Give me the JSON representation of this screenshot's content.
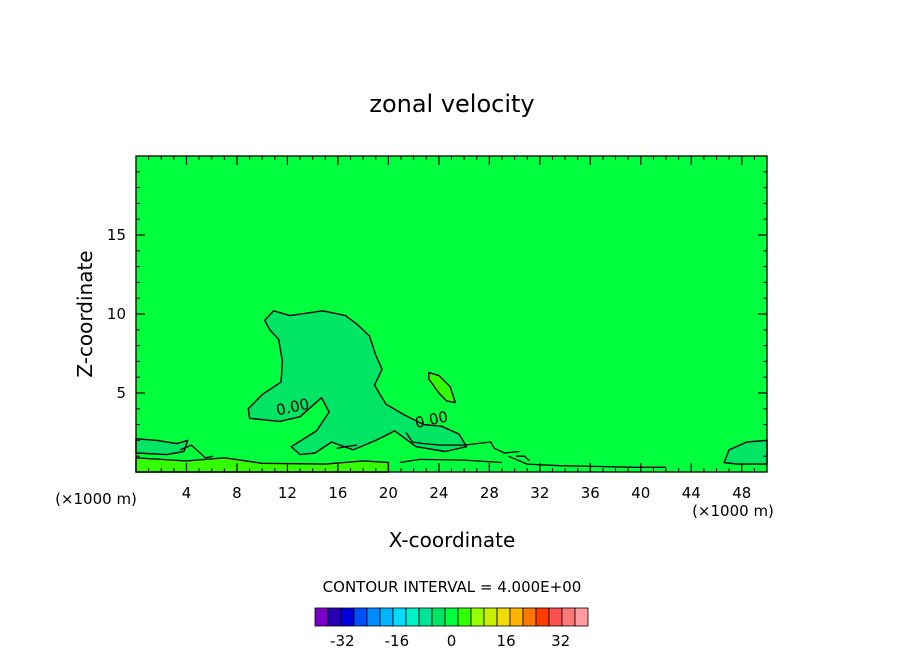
{
  "chart_data": {
    "type": "contour",
    "title": "zonal velocity",
    "xlabel": "X-coordinate",
    "ylabel": "Z-coordinate",
    "x_unit": "(×1000 m)",
    "x_unit_right": "(×1000 m)",
    "xlim": [
      0,
      50
    ],
    "ylim": [
      0,
      20
    ],
    "x_ticks": [
      4,
      8,
      12,
      16,
      20,
      24,
      28,
      32,
      36,
      40,
      44,
      48
    ],
    "y_ticks": [
      5,
      10,
      15
    ],
    "contour_interval_label": "CONTOUR INTERVAL = 4.000E+00",
    "contour_labels": [
      {
        "text": "0.00",
        "x": 12.5,
        "y": 3.8
      },
      {
        "text": "0.00",
        "x": 23.5,
        "y": 3.0
      }
    ],
    "colorbar": {
      "ticks": [
        "-32",
        "-16",
        "0",
        "16",
        "32"
      ],
      "tick_values": [
        -32,
        -16,
        0,
        16,
        32
      ],
      "bin_edges": [
        -40,
        -36,
        -32,
        -28,
        -24,
        -20,
        -16,
        -12,
        -8,
        -4,
        0,
        4,
        8,
        12,
        16,
        20,
        24,
        28,
        32,
        36,
        40
      ],
      "colors": [
        "#7a00c8",
        "#2a00b4",
        "#0000dc",
        "#0050ff",
        "#008cff",
        "#00b4ff",
        "#00dcff",
        "#00f0c8",
        "#00e696",
        "#00e664",
        "#00ff3c",
        "#32ff00",
        "#96ff00",
        "#c8f000",
        "#f0dc00",
        "#ffb400",
        "#ff7800",
        "#ff3c00",
        "#ff5050",
        "#ff7878",
        "#ff9ba0"
      ]
    },
    "background_color": "#00ff3c",
    "regions": [
      {
        "name": "weak-easterly-core",
        "color": "#00e664",
        "points": [
          [
            10.2,
            9.6
          ],
          [
            10.9,
            10.2
          ],
          [
            12.2,
            9.9
          ],
          [
            14.8,
            10.2
          ],
          [
            16.6,
            9.9
          ],
          [
            17.6,
            9.3
          ],
          [
            18.5,
            8.6
          ],
          [
            19.0,
            7.4
          ],
          [
            19.5,
            6.5
          ],
          [
            18.9,
            5.5
          ],
          [
            19.8,
            4.3
          ],
          [
            21.3,
            3.6
          ],
          [
            22.8,
            3.0
          ],
          [
            24.2,
            2.9
          ],
          [
            25.6,
            2.4
          ],
          [
            26.2,
            1.6
          ],
          [
            24.5,
            1.3
          ],
          [
            22.2,
            1.6
          ],
          [
            20.5,
            2.6
          ],
          [
            19.0,
            2.0
          ],
          [
            17.2,
            1.4
          ],
          [
            15.5,
            1.9
          ],
          [
            14.2,
            1.2
          ],
          [
            13.0,
            1.1
          ],
          [
            12.3,
            1.6
          ],
          [
            14.3,
            2.6
          ],
          [
            15.3,
            3.8
          ],
          [
            14.7,
            4.7
          ],
          [
            13.0,
            3.5
          ],
          [
            11.4,
            3.2
          ],
          [
            9.0,
            3.4
          ],
          [
            8.9,
            4.0
          ],
          [
            10.0,
            4.9
          ],
          [
            11.5,
            5.7
          ],
          [
            11.6,
            7.0
          ],
          [
            11.3,
            8.4
          ],
          [
            10.6,
            9.0
          ]
        ]
      },
      {
        "name": "surface-band",
        "color": "#00e664",
        "points": [
          [
            0,
            2.1
          ],
          [
            1.7,
            2.0
          ],
          [
            3.2,
            1.8
          ],
          [
            4.1,
            2.0
          ],
          [
            3.8,
            1.3
          ],
          [
            2.4,
            1.1
          ],
          [
            0,
            1.2
          ]
        ]
      },
      {
        "name": "surface-band-right",
        "color": "#00e664",
        "points": [
          [
            50,
            2.0
          ],
          [
            48.4,
            1.9
          ],
          [
            47.0,
            1.4
          ],
          [
            46.6,
            0.6
          ],
          [
            47.6,
            0.5
          ],
          [
            50,
            0.5
          ]
        ]
      },
      {
        "name": "westerly-patch",
        "color": "#32ff00",
        "points": [
          [
            23.2,
            6.3
          ],
          [
            24.0,
            6.1
          ],
          [
            24.9,
            5.4
          ],
          [
            25.3,
            4.4
          ],
          [
            24.6,
            4.5
          ],
          [
            24.0,
            5.0
          ],
          [
            23.2,
            5.9
          ]
        ]
      },
      {
        "name": "surface-westerly",
        "color": "#32ff00",
        "points": [
          [
            0,
            0.9
          ],
          [
            4.0,
            0.7
          ],
          [
            7.0,
            0.9
          ],
          [
            10.0,
            0.55
          ],
          [
            15.0,
            0.5
          ],
          [
            18.0,
            0.7
          ],
          [
            20.0,
            0.6
          ],
          [
            20.0,
            0
          ],
          [
            0,
            0
          ]
        ]
      }
    ],
    "contour_lines": [
      {
        "points": [
          [
            17.5,
            1.7
          ],
          [
            16.6,
            1.6
          ],
          [
            15.9,
            1.5
          ]
        ]
      },
      {
        "points": [
          [
            21.4,
            2.5
          ],
          [
            21.9,
            1.9
          ],
          [
            22.8,
            1.8
          ],
          [
            24.2,
            1.7
          ],
          [
            26.0,
            1.7
          ],
          [
            28.1,
            1.9
          ],
          [
            28.4,
            1.5
          ],
          [
            29.2,
            1.2
          ],
          [
            30.4,
            1.3
          ]
        ]
      },
      {
        "points": [
          [
            29.5,
            1.0
          ],
          [
            31.0,
            0.5
          ],
          [
            33.6,
            0.4
          ],
          [
            36.8,
            0.35
          ],
          [
            39.5,
            0.3
          ],
          [
            42.0,
            0.3
          ]
        ]
      },
      {
        "points": [
          [
            20.9,
            0.6
          ],
          [
            22.5,
            0.8
          ],
          [
            26.0,
            0.75
          ],
          [
            29.0,
            0.6
          ]
        ]
      },
      {
        "points": [
          [
            3.5,
            1.4
          ],
          [
            4.4,
            1.7
          ],
          [
            5.5,
            0.9
          ],
          [
            6.1,
            1.0
          ]
        ]
      },
      {
        "points": [
          [
            30.1,
            1.0
          ],
          [
            30.8,
            1.0
          ],
          [
            31.2,
            0.7
          ]
        ]
      }
    ]
  }
}
